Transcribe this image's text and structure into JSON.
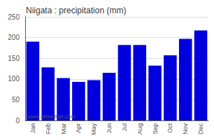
{
  "chart_data": {
    "type": "bar",
    "title": "Niigata : precipitation (mm)",
    "categories": [
      "Jan",
      "Feb",
      "Mar",
      "Apr",
      "May",
      "Jun",
      "Jul",
      "Aug",
      "Sep",
      "Oct",
      "Nov",
      "Dec"
    ],
    "values": [
      190,
      128,
      102,
      93,
      97,
      115,
      182,
      182,
      132,
      157,
      197,
      217
    ],
    "color": "#0000dd",
    "ylim": [
      0,
      250
    ],
    "yticks": [
      0,
      50,
      100,
      150,
      200,
      250
    ],
    "grid": true,
    "annotation": "www.allmetsat.com"
  }
}
